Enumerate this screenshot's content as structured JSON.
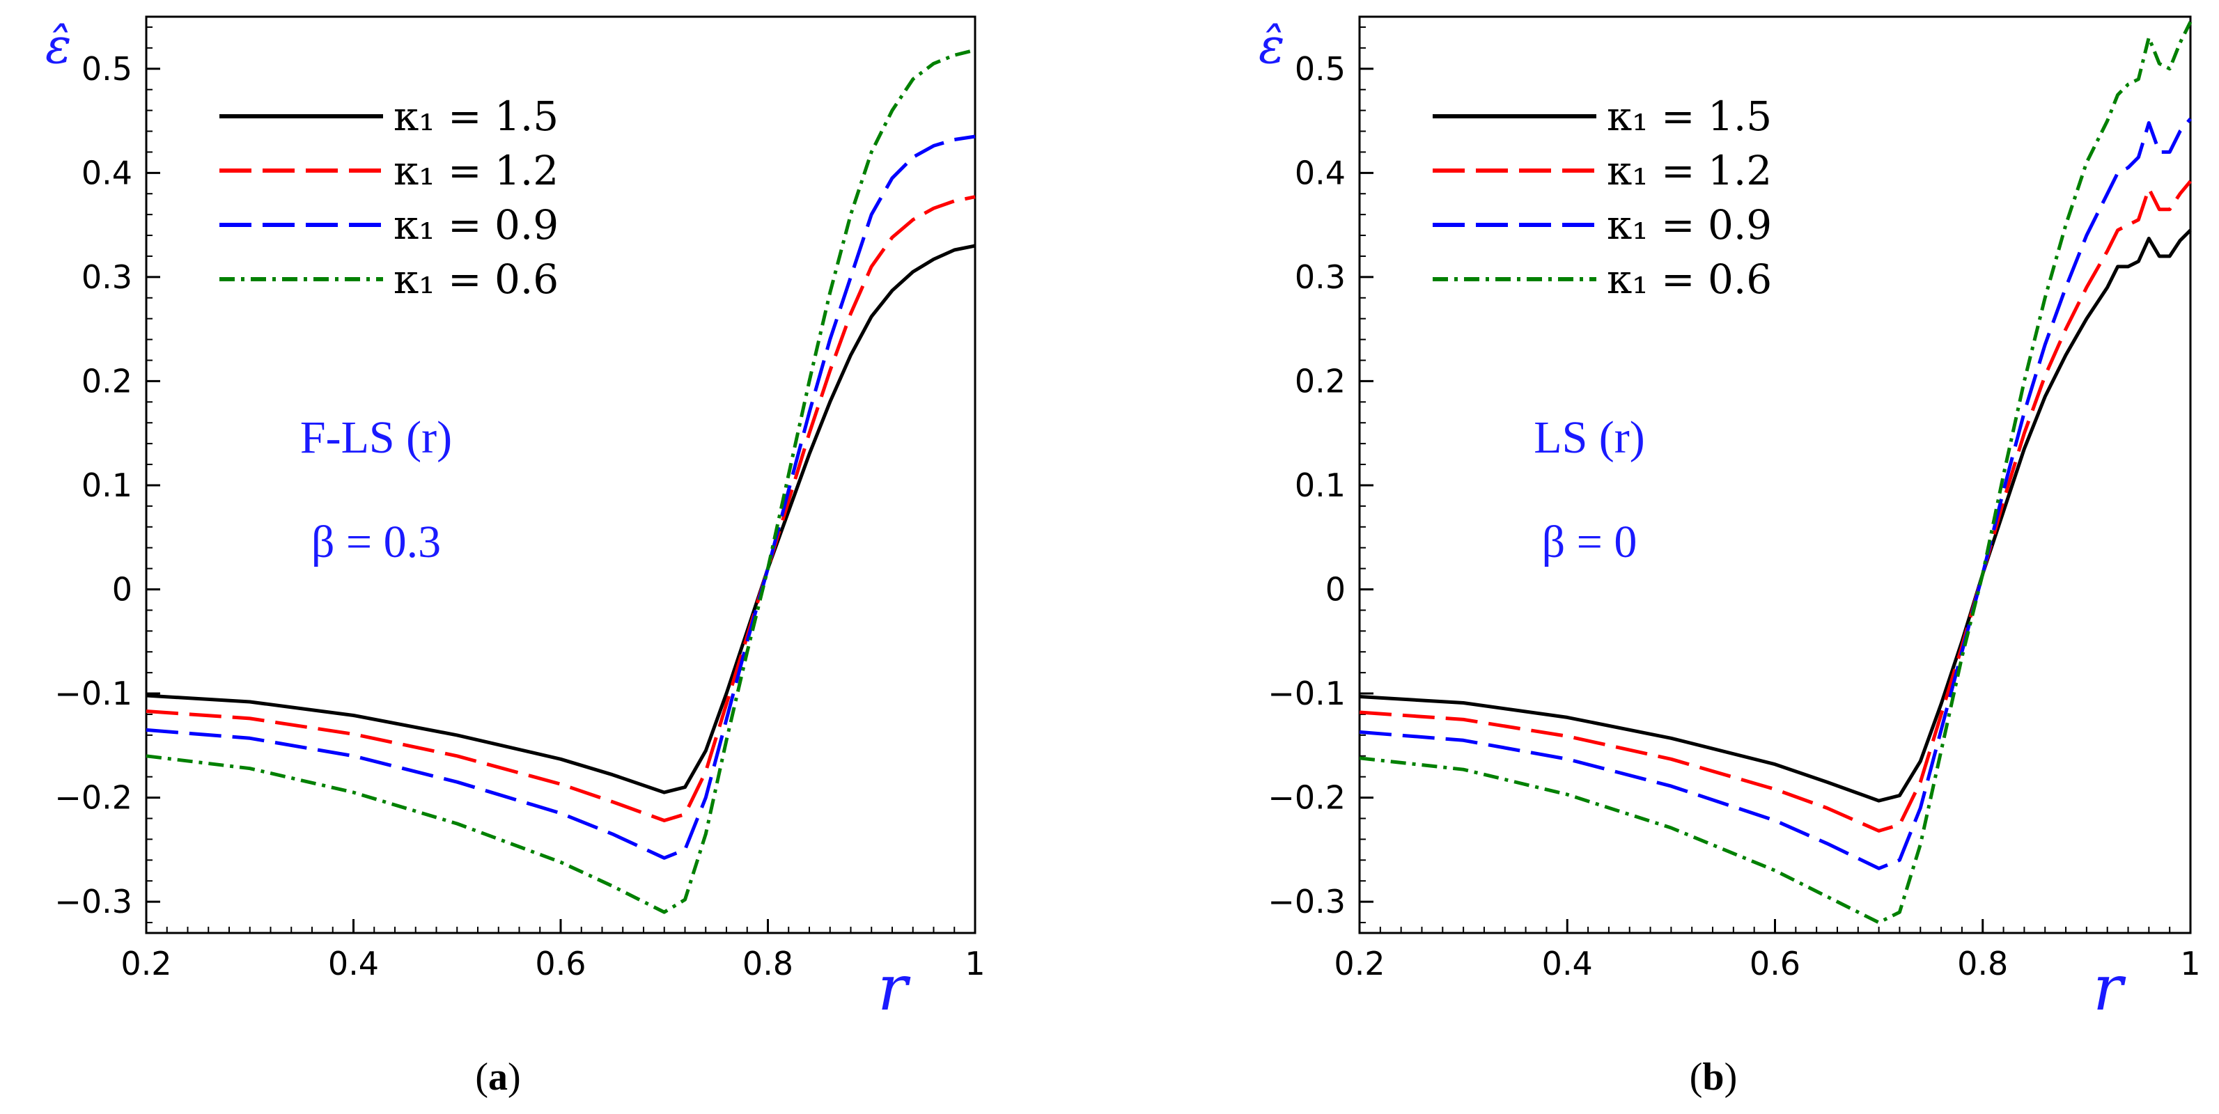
{
  "chart_data": [
    {
      "type": "line",
      "panel": "a",
      "caption": "a",
      "annotation": [
        "F-LS (r)",
        "β = 0.3"
      ],
      "xlabel": "r",
      "ylabel": "ε̂",
      "xlim": [
        0.2,
        1.0
      ],
      "ylim": [
        -0.33,
        0.55
      ],
      "xticks": [
        0.2,
        0.4,
        0.6,
        0.8,
        1.0
      ],
      "xtick_labels": [
        "0.2",
        "0.4",
        "0.6",
        "0.8",
        "1"
      ],
      "yticks": [
        -0.3,
        -0.2,
        -0.1,
        0,
        0.1,
        0.2,
        0.3,
        0.4,
        0.5
      ],
      "ytick_labels": [
        "−0.3",
        "−0.2",
        "−0.1",
        "0",
        "0.1",
        "0.2",
        "0.3",
        "0.4",
        "0.5"
      ],
      "legend": "top-left",
      "series": [
        {
          "name": "κ₁ = 1.5",
          "color": "#000000",
          "dash": "solid",
          "x": [
            0.2,
            0.3,
            0.4,
            0.5,
            0.6,
            0.65,
            0.7,
            0.72,
            0.74,
            0.76,
            0.78,
            0.8,
            0.82,
            0.84,
            0.86,
            0.88,
            0.9,
            0.92,
            0.94,
            0.96,
            0.98,
            1.0
          ],
          "y": [
            -0.102,
            -0.108,
            -0.121,
            -0.14,
            -0.163,
            -0.178,
            -0.195,
            -0.19,
            -0.155,
            -0.1,
            -0.04,
            0.02,
            0.075,
            0.13,
            0.18,
            0.225,
            0.262,
            0.287,
            0.305,
            0.317,
            0.326,
            0.33
          ]
        },
        {
          "name": "κ₁ = 1.2",
          "color": "#ff0000",
          "dash": "long-dash",
          "x": [
            0.2,
            0.3,
            0.4,
            0.5,
            0.6,
            0.65,
            0.7,
            0.72,
            0.74,
            0.76,
            0.78,
            0.8,
            0.82,
            0.84,
            0.86,
            0.88,
            0.9,
            0.92,
            0.94,
            0.96,
            0.98,
            1.0
          ],
          "y": [
            -0.117,
            -0.124,
            -0.139,
            -0.16,
            -0.187,
            -0.204,
            -0.222,
            -0.216,
            -0.175,
            -0.11,
            -0.045,
            0.02,
            0.085,
            0.15,
            0.21,
            0.265,
            0.31,
            0.338,
            0.355,
            0.366,
            0.373,
            0.377
          ]
        },
        {
          "name": "κ₁ = 0.9",
          "color": "#0000ff",
          "dash": "long-dash",
          "x": [
            0.2,
            0.3,
            0.4,
            0.5,
            0.6,
            0.65,
            0.7,
            0.72,
            0.74,
            0.76,
            0.78,
            0.8,
            0.82,
            0.84,
            0.86,
            0.88,
            0.9,
            0.92,
            0.94,
            0.96,
            0.98,
            1.0
          ],
          "y": [
            -0.135,
            -0.143,
            -0.16,
            -0.185,
            -0.215,
            -0.235,
            -0.258,
            -0.25,
            -0.2,
            -0.125,
            -0.05,
            0.02,
            0.095,
            0.17,
            0.24,
            0.3,
            0.36,
            0.395,
            0.415,
            0.426,
            0.432,
            0.435
          ]
        },
        {
          "name": "κ₁ = 0.6",
          "color": "#008000",
          "dash": "dash-dot",
          "x": [
            0.2,
            0.3,
            0.4,
            0.5,
            0.6,
            0.65,
            0.7,
            0.72,
            0.74,
            0.76,
            0.78,
            0.8,
            0.82,
            0.84,
            0.86,
            0.88,
            0.9,
            0.92,
            0.94,
            0.96,
            0.98,
            1.0
          ],
          "y": [
            -0.16,
            -0.172,
            -0.195,
            -0.225,
            -0.262,
            -0.285,
            -0.31,
            -0.298,
            -0.235,
            -0.145,
            -0.06,
            0.02,
            0.11,
            0.2,
            0.285,
            0.36,
            0.42,
            0.46,
            0.49,
            0.505,
            0.513,
            0.518
          ]
        }
      ]
    },
    {
      "type": "line",
      "panel": "b",
      "caption": "b",
      "annotation": [
        "LS (r)",
        "β = 0"
      ],
      "xlabel": "r",
      "ylabel": "ε̂",
      "xlim": [
        0.2,
        1.0
      ],
      "ylim": [
        -0.33,
        0.55
      ],
      "xticks": [
        0.2,
        0.4,
        0.6,
        0.8,
        1.0
      ],
      "xtick_labels": [
        "0.2",
        "0.4",
        "0.6",
        "0.8",
        "1"
      ],
      "yticks": [
        -0.3,
        -0.2,
        -0.1,
        0,
        0.1,
        0.2,
        0.3,
        0.4,
        0.5
      ],
      "ytick_labels": [
        "−0.3",
        "−0.2",
        "−0.1",
        "0",
        "0.1",
        "0.2",
        "0.3",
        "0.4",
        "0.5"
      ],
      "legend": "top-left",
      "series": [
        {
          "name": "κ₁ = 1.5",
          "color": "#000000",
          "dash": "solid",
          "x": [
            0.2,
            0.3,
            0.4,
            0.5,
            0.6,
            0.65,
            0.7,
            0.72,
            0.74,
            0.76,
            0.78,
            0.8,
            0.82,
            0.84,
            0.86,
            0.88,
            0.9,
            0.92,
            0.93,
            0.94,
            0.95,
            0.96,
            0.97,
            0.98,
            0.99,
            1.0
          ],
          "y": [
            -0.103,
            -0.109,
            -0.123,
            -0.143,
            -0.168,
            -0.185,
            -0.203,
            -0.198,
            -0.165,
            -0.11,
            -0.05,
            0.015,
            0.075,
            0.135,
            0.185,
            0.225,
            0.26,
            0.29,
            0.31,
            0.31,
            0.315,
            0.337,
            0.32,
            0.32,
            0.335,
            0.345
          ]
        },
        {
          "name": "κ₁ = 1.2",
          "color": "#ff0000",
          "dash": "long-dash",
          "x": [
            0.2,
            0.3,
            0.4,
            0.5,
            0.6,
            0.65,
            0.7,
            0.72,
            0.74,
            0.76,
            0.78,
            0.8,
            0.82,
            0.84,
            0.86,
            0.88,
            0.9,
            0.92,
            0.93,
            0.94,
            0.95,
            0.96,
            0.97,
            0.98,
            0.99,
            1.0
          ],
          "y": [
            -0.118,
            -0.125,
            -0.141,
            -0.163,
            -0.192,
            -0.21,
            -0.232,
            -0.226,
            -0.185,
            -0.12,
            -0.055,
            0.015,
            0.085,
            0.15,
            0.205,
            0.25,
            0.29,
            0.325,
            0.345,
            0.35,
            0.355,
            0.385,
            0.365,
            0.365,
            0.38,
            0.392
          ]
        },
        {
          "name": "κ₁ = 0.9",
          "color": "#0000ff",
          "dash": "long-dash",
          "x": [
            0.2,
            0.3,
            0.4,
            0.5,
            0.6,
            0.65,
            0.7,
            0.72,
            0.74,
            0.76,
            0.78,
            0.8,
            0.82,
            0.84,
            0.86,
            0.88,
            0.9,
            0.92,
            0.93,
            0.94,
            0.95,
            0.96,
            0.97,
            0.98,
            0.99,
            1.0
          ],
          "y": [
            -0.137,
            -0.145,
            -0.163,
            -0.189,
            -0.222,
            -0.244,
            -0.268,
            -0.26,
            -0.21,
            -0.135,
            -0.06,
            0.015,
            0.095,
            0.17,
            0.235,
            0.29,
            0.34,
            0.38,
            0.4,
            0.405,
            0.415,
            0.448,
            0.42,
            0.42,
            0.44,
            0.452
          ]
        },
        {
          "name": "κ₁ = 0.6",
          "color": "#008000",
          "dash": "dash-dot",
          "x": [
            0.2,
            0.3,
            0.4,
            0.5,
            0.6,
            0.65,
            0.7,
            0.72,
            0.74,
            0.76,
            0.78,
            0.8,
            0.82,
            0.84,
            0.86,
            0.88,
            0.9,
            0.92,
            0.93,
            0.94,
            0.95,
            0.96,
            0.97,
            0.98,
            0.99,
            1.0
          ],
          "y": [
            -0.162,
            -0.173,
            -0.197,
            -0.229,
            -0.27,
            -0.295,
            -0.32,
            -0.31,
            -0.245,
            -0.155,
            -0.065,
            0.015,
            0.11,
            0.2,
            0.28,
            0.35,
            0.41,
            0.45,
            0.475,
            0.485,
            0.49,
            0.53,
            0.505,
            0.5,
            0.525,
            0.545
          ]
        }
      ]
    }
  ]
}
